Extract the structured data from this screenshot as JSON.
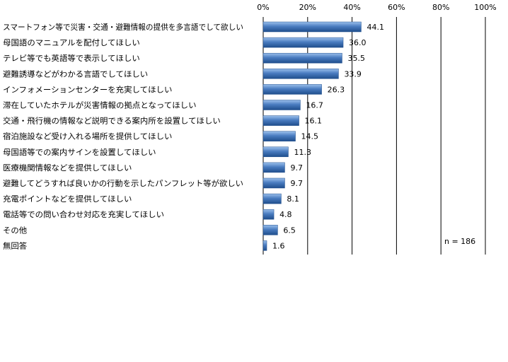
{
  "chart_data": {
    "type": "bar",
    "orientation": "horizontal",
    "categories": [
      "スマートフォン等で災害・交通・避難情報の提供を多言語でして欲しい",
      "母国語のマニュアルを配付してほしい",
      "テレビ等でも英語等で表示してほしい",
      "避難誘導などがわかる言語でしてほしい",
      "インフォメーションセンターを充実してほしい",
      "滞在していたホテルが災害情報の拠点となってほしい",
      "交通・飛行機の情報など説明できる案内所を設置してほしい",
      "宿泊施設など受け入れる場所を提供してほしい",
      "母国語等での案内サインを設置してほしい",
      "医療機関情報などを提供してほしい",
      "避難してどうすれば良いかの行動を示したパンフレット等が欲しい",
      "充電ポイントなどを提供してほしい",
      "電話等での問い合わせ対応を充実してほしい",
      "その他",
      "無回答"
    ],
    "values": [
      44.1,
      36.0,
      35.5,
      33.9,
      26.3,
      16.7,
      16.1,
      14.5,
      11.3,
      9.7,
      9.7,
      8.1,
      4.8,
      6.5,
      1.6
    ],
    "value_labels": [
      "44.1",
      "36.0",
      "35.5",
      "33.9",
      "26.3",
      "16.7",
      "16.1",
      "14.5",
      "11.3",
      "9.7",
      "9.7",
      "8.1",
      "4.8",
      "6.5",
      "1.6"
    ],
    "xlim": [
      0,
      100
    ],
    "ticks": [
      "0%",
      "20%",
      "40%",
      "60%",
      "80%",
      "100%"
    ],
    "tick_values": [
      0,
      20,
      40,
      60,
      80,
      100
    ],
    "grid": true,
    "axis_position": "top",
    "annotation": "n = 186",
    "colors": {
      "bar": "#4a7cc0",
      "bar_dark": "#1f4e8c",
      "bar_light": "#9cc0ec",
      "grid": "#000000"
    }
  }
}
